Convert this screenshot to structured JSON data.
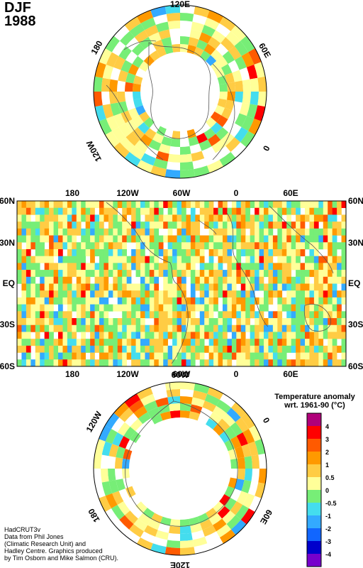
{
  "title": {
    "season": "DJF",
    "year": "1988"
  },
  "north_polar_map": {
    "lon_labels": [
      "120E",
      "60E",
      "0",
      "120W",
      "180"
    ]
  },
  "equatorial_map": {
    "lon_labels": [
      "180",
      "120W",
      "60W",
      "0",
      "60E"
    ],
    "lat_labels": [
      "60N",
      "30N",
      "EQ",
      "30S",
      "60S"
    ]
  },
  "south_polar_map": {
    "lon_labels": [
      "60W",
      "0",
      "120W",
      "180",
      "60E",
      "120E"
    ]
  },
  "legend": {
    "title_line1": "Temperature anomaly",
    "title_line2": "wrt. 1961-90  (°C)",
    "bins": [
      {
        "color": "#b0007a"
      },
      {
        "color": "#ff0000"
      },
      {
        "color": "#ff5a00"
      },
      {
        "color": "#ff9900"
      },
      {
        "color": "#ffcc44"
      },
      {
        "color": "#ffff99"
      },
      {
        "color": "#77ee77"
      },
      {
        "color": "#44ddee"
      },
      {
        "color": "#33aaff"
      },
      {
        "color": "#1166ff"
      },
      {
        "color": "#0000cc"
      },
      {
        "color": "#7700cc"
      }
    ],
    "tick_labels": [
      "4",
      "3",
      "2",
      "1",
      "0.5",
      "0",
      "-0.5",
      "-1",
      "-2",
      "-3",
      "-4"
    ]
  },
  "credits": [
    "HadCRUT3v",
    "Data from Phil Jones",
    "(Climatic Research Unit) and",
    "Hadley Centre.  Graphics produced",
    "by Tim Osborn and Mike Salmon (CRU)."
  ]
}
